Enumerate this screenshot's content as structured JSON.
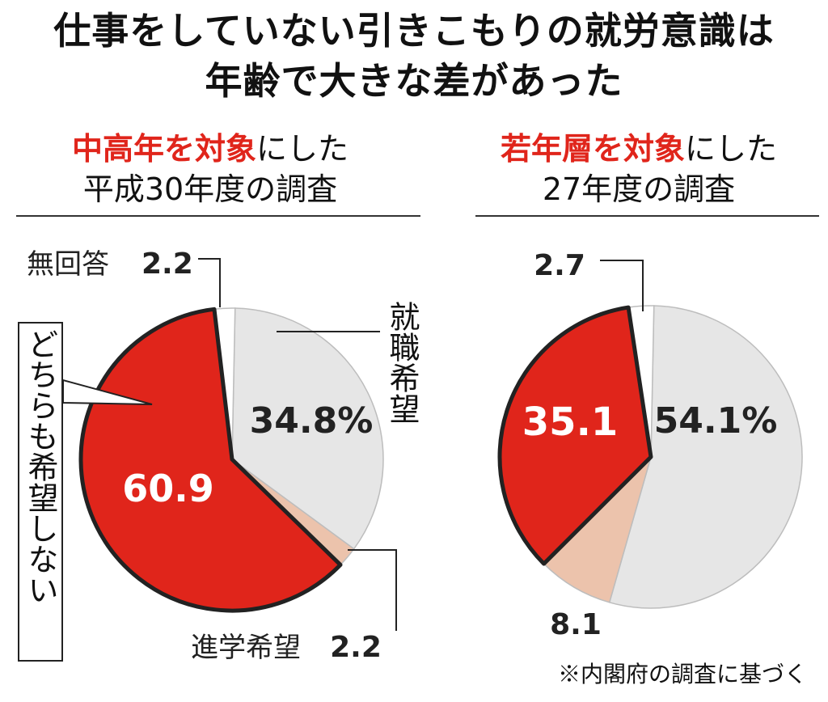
{
  "title_line1": "仕事をしていない引きこもりの就労意識は",
  "title_line2": "年齢で大きな差があった",
  "left_header": {
    "emphasis": "中高年を対象",
    "rest": "にした",
    "line2": "平成30年度の調査"
  },
  "right_header": {
    "emphasis": "若年層を対象",
    "rest": "にした",
    "line2": "27年度の調査"
  },
  "source_note": "※内閣府の調査に基づく",
  "colors": {
    "red": "#e0251b",
    "gray": "#e6e6e6",
    "peach": "#ecc3ac",
    "white": "#ffffff",
    "outline": "#222222"
  },
  "chart_data": [
    {
      "type": "pie",
      "slices": [
        {
          "name": "就職希望",
          "value": 34.8,
          "label": "34.8%",
          "color": "#e6e6e6"
        },
        {
          "name": "進学希望",
          "value": 2.2,
          "label": "2.2",
          "color": "#ecc3ac"
        },
        {
          "name": "どちらも希望しない",
          "value": 60.9,
          "label": "60.9",
          "color": "#e0251b"
        },
        {
          "name": "無回答",
          "value": 2.2,
          "label": "2.2",
          "color": "#ffffff"
        }
      ],
      "category_labels": {
        "employment": "就職希望",
        "study": "進学希望",
        "neither": "どちらも希望しない",
        "no_answer": "無回答"
      }
    },
    {
      "type": "pie",
      "slices": [
        {
          "name": "就職希望",
          "value": 54.1,
          "label": "54.1%",
          "color": "#e6e6e6"
        },
        {
          "name": "進学希望",
          "value": 8.1,
          "label": "8.1",
          "color": "#ecc3ac"
        },
        {
          "name": "どちらも希望しない",
          "value": 35.1,
          "label": "35.1",
          "color": "#e0251b"
        },
        {
          "name": "無回答",
          "value": 2.7,
          "label": "2.7",
          "color": "#ffffff"
        }
      ]
    }
  ]
}
